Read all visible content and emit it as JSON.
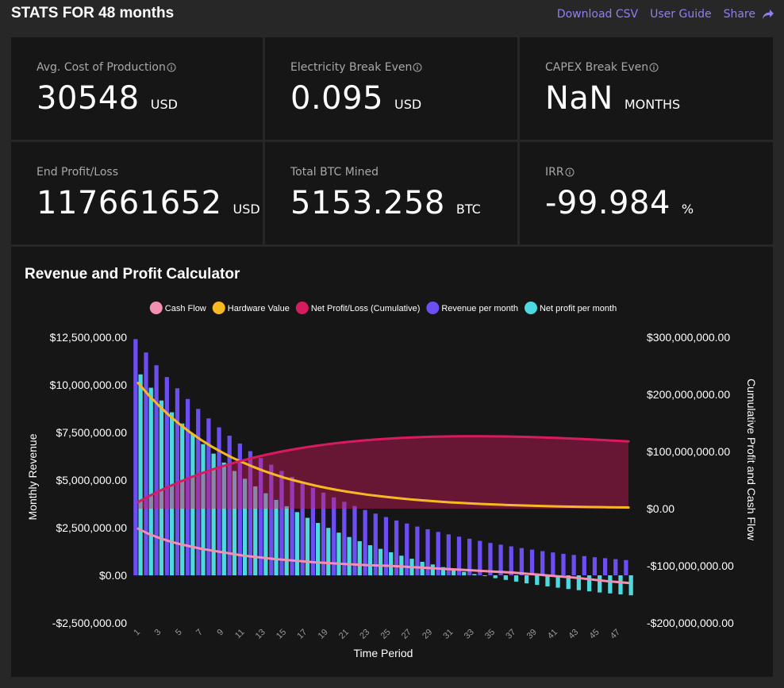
{
  "header": {
    "title": "STATS FOR 48 months",
    "links": [
      "Download CSV",
      "User Guide",
      "Share"
    ]
  },
  "stats": [
    {
      "label": "Avg. Cost of Production",
      "value": 30548,
      "unit": "USD"
    },
    {
      "label": "Electricity Break Even",
      "value": 0.095,
      "unit": "USD"
    },
    {
      "label": "CAPEX Break Even",
      "value": "NaN",
      "unit": "MONTHS"
    },
    {
      "label": "End Profit/Loss",
      "value": 117661652,
      "unit": "USD"
    },
    {
      "label": "Total BTC Mined",
      "value": 5153.258,
      "unit": "BTC"
    },
    {
      "label": "IRR",
      "value": -99.984,
      "unit": "%"
    }
  ],
  "chart_data": {
    "type": "combo",
    "title": "Revenue and Profit Calculator",
    "x_label": "Time Period",
    "y_label": "Monthly Revenue",
    "y2_label": "Cumulative Profit and Cash Flow",
    "categories": [
      1,
      null,
      3,
      null,
      5,
      null,
      7,
      null,
      9,
      null,
      11,
      null,
      13,
      null,
      15,
      null,
      17,
      null,
      19,
      null,
      21,
      null,
      23,
      null,
      25,
      null,
      27,
      null,
      29,
      null,
      31,
      null,
      33,
      null,
      35,
      null,
      37,
      null,
      39,
      null,
      41,
      null,
      43,
      null,
      45,
      null,
      47,
      null
    ],
    "ylim": [
      -2500000,
      12500000
    ],
    "yticks": [
      {
        "value": 12500000,
        "label": "$12,500,000.00"
      },
      {
        "value": 10000000,
        "label": "$10,000,000.00"
      },
      {
        "value": 7500000,
        "label": "$7,500,000.00"
      },
      {
        "value": 5000000,
        "label": "$5,000,000.00"
      },
      {
        "value": 2500000,
        "label": "$2,500,000.00"
      },
      {
        "value": 0,
        "label": "$0.00"
      },
      {
        "value": -2500000,
        "label": "-$2,500,000.00"
      }
    ],
    "y2lim": [
      -200000000,
      300000000
    ],
    "y2ticks": [
      {
        "value": 300000000,
        "label": "$300,000,000.00"
      },
      {
        "value": 200000000,
        "label": "$200,000,000.00"
      },
      {
        "value": 100000000,
        "label": "$100,000,000.00"
      },
      {
        "value": 0,
        "label": "$0.00"
      },
      {
        "value": -100000000,
        "label": "-$100,000,000.00"
      },
      {
        "value": -200000000,
        "label": "-$200,000,000.00"
      }
    ],
    "legend": "top",
    "series": [
      {
        "name": "Cash Flow",
        "color": "#f48fb1",
        "type": "line",
        "axis": "y2",
        "values": [
          -35000000,
          -44000000,
          -51000000,
          -57000000,
          -62000000,
          -66000000,
          -70000000,
          -73000000,
          -76000000,
          -79000000,
          -82000000,
          -84000000,
          -86000000,
          -88000000,
          -89500000,
          -91000000,
          -92500000,
          -94000000,
          -95000000,
          -96000000,
          -97000000,
          -98000000,
          -99000000,
          -99500000,
          -100000000,
          -101000000,
          -102000000,
          -103000000,
          -104000000,
          -105000000,
          -106000000,
          -107000000,
          -108000000,
          -109000000,
          -110000000,
          -111000000,
          -112000000,
          -113500000,
          -115000000,
          -116500000,
          -118000000,
          -119500000,
          -121000000,
          -123000000,
          -125000000,
          -127000000,
          -128500000,
          -130000000
        ]
      },
      {
        "name": "Hardware Value",
        "color": "#f6b924",
        "type": "line",
        "axis": "y2",
        "values": [
          220000000,
          199100000,
          180200000,
          163000000,
          147600000,
          133500000,
          120800000,
          109300000,
          99000000,
          89500000,
          81200000,
          73500000,
          66400000,
          60100000,
          54300000,
          49300000,
          44700000,
          40300000,
          36500000,
          33000000,
          29900000,
          27100000,
          24400000,
          22200000,
          20100000,
          18200000,
          16400000,
          14900000,
          13500000,
          12200000,
          11000000,
          10000000,
          9000000,
          8200000,
          7400000,
          6700000,
          6100000,
          5500000,
          5000000,
          4500000,
          4000000,
          3700000,
          3300000,
          3000000,
          2700000,
          2500000,
          2200000,
          2000000
        ]
      },
      {
        "name": "Net Profit/Loss (Cumulative)",
        "color": "#d81b60",
        "type": "line",
        "area": true,
        "axis": "y2",
        "values": [
          11550000,
          21400000,
          30580000,
          39140000,
          47110000,
          54520000,
          61410000,
          67800000,
          73720000,
          79200000,
          84270000,
          88940000,
          93250000,
          97210000,
          100840000,
          104160000,
          107180000,
          109930000,
          112420000,
          114660000,
          116670000,
          118460000,
          120040000,
          121430000,
          122640000,
          123670000,
          124540000,
          125250000,
          125820000,
          126250000,
          126550000,
          126730000,
          126800000,
          126760000,
          126610000,
          126370000,
          126040000,
          125620000,
          125120000,
          124540000,
          123890000,
          123170000,
          122390000,
          121550000,
          120650000,
          119700000,
          118700000,
          117661652
        ]
      },
      {
        "name": "Revenue per month",
        "color": "#6c4ef2",
        "type": "bar",
        "values": [
          12400000,
          11700000,
          11030000,
          10410000,
          9820000,
          9260000,
          8740000,
          8240000,
          7770000,
          7330000,
          6920000,
          6520000,
          6160000,
          5810000,
          5480000,
          5170000,
          4870000,
          4600000,
          4340000,
          4090000,
          3860000,
          3640000,
          3430000,
          3240000,
          3060000,
          2880000,
          2720000,
          2560000,
          2420000,
          2280000,
          2150000,
          2030000,
          1920000,
          1810000,
          1700000,
          1610000,
          1520000,
          1430000,
          1350000,
          1270000,
          1200000,
          1130000,
          1070000,
          1010000,
          950000,
          900000,
          850000,
          800000
        ]
      },
      {
        "name": "Net profit per month",
        "color": "#4dd9e0",
        "type": "bar",
        "values": [
          10550000,
          9850000,
          9180000,
          8560000,
          7970000,
          7410000,
          6890000,
          6390000,
          5920000,
          5480000,
          5070000,
          4670000,
          4310000,
          3960000,
          3630000,
          3320000,
          3020000,
          2750000,
          2490000,
          2240000,
          2010000,
          1790000,
          1580000,
          1390000,
          1210000,
          1030000,
          870000,
          710000,
          570000,
          430000,
          300000,
          180000,
          70000,
          -40000,
          -150000,
          -240000,
          -330000,
          -420000,
          -500000,
          -580000,
          -650000,
          -720000,
          -780000,
          -840000,
          -900000,
          -950000,
          -1000000,
          -1050000
        ]
      }
    ]
  }
}
